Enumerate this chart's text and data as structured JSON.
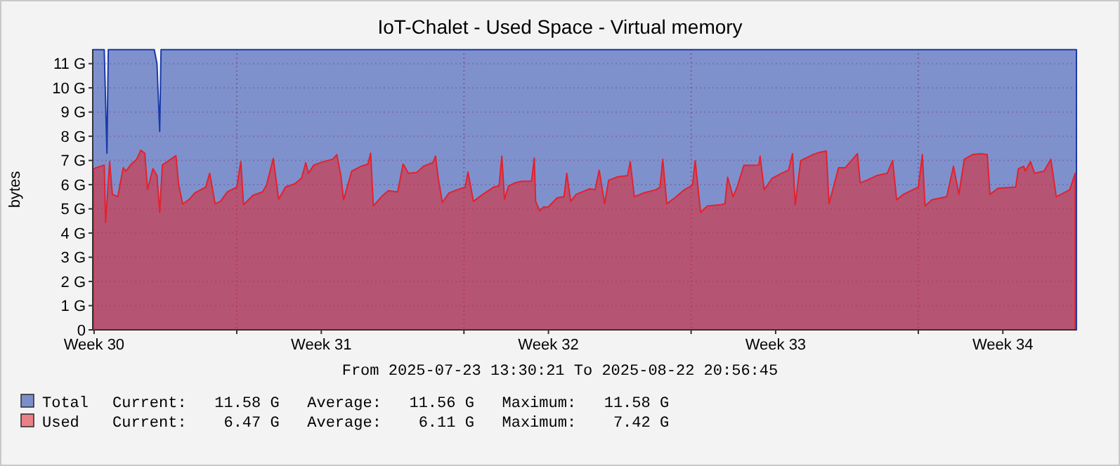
{
  "chart_data": {
    "type": "area",
    "title": "IoT-Chalet - Used Space - Virtual memory",
    "ylabel": "bytes",
    "xlim": [
      "2025-07-23T13:30",
      "2025-08-22T20:56"
    ],
    "xticks": [
      {
        "value": "2025-07-23T14:30",
        "label": "Week 30"
      },
      {
        "value": "2025-07-30T14:30",
        "label": "Week 31"
      },
      {
        "value": "2025-08-06T14:30",
        "label": "Week 32"
      },
      {
        "value": "2025-08-13T14:30",
        "label": "Week 33"
      },
      {
        "value": "2025-08-20T14:30",
        "label": "Week 34"
      },
      {
        "value": "2025-07-28T00:00",
        "label": null
      },
      {
        "value": "2025-08-04T00:00",
        "label": null
      },
      {
        "value": "2025-08-11T00:00",
        "label": null
      },
      {
        "value": "2025-08-18T00:00",
        "label": null
      }
    ],
    "ylim": [
      0,
      11.6
    ],
    "yticks": [
      0,
      {
        "value": 1,
        "label": "1 G"
      },
      {
        "value": 2,
        "label": "2 G"
      },
      {
        "value": 3,
        "label": "3 G"
      },
      {
        "value": 4,
        "label": "4 G"
      },
      {
        "value": 5,
        "label": "5 G"
      },
      {
        "value": 6,
        "label": "6 G"
      },
      {
        "value": 7,
        "label": "7 G"
      },
      {
        "value": 8,
        "label": "8 G"
      },
      {
        "value": 9,
        "label": "9 G"
      },
      {
        "value": 10,
        "label": "10 G"
      },
      {
        "value": 11,
        "label": "11 G"
      }
    ],
    "grid": true,
    "legend": "bottom",
    "series": [
      {
        "name": "Total",
        "color": "#1a3aa8",
        "x": [
          "2025-07-23T13:30",
          "2025-07-23T22:00",
          "2025-07-24T00:00",
          "2025-07-24T01:00",
          "2025-07-25T11:00",
          "2025-07-25T13:00",
          "2025-07-25T15:00",
          "2025-07-25T16:00",
          "2025-08-22T20:56"
        ],
        "values": [
          11.58,
          11.58,
          7.3,
          11.58,
          11.58,
          11.0,
          8.2,
          11.58,
          11.58
        ]
      },
      {
        "name": "Used",
        "color": "#e3222c",
        "x": [
          "2025-07-23T14:00",
          "2025-07-23T22:00",
          "2025-07-23T23:00",
          "2025-07-24T02:00",
          "2025-07-24T04:00",
          "2025-07-24T08:00",
          "2025-07-24T12:00",
          "2025-07-24T14:00",
          "2025-07-24T18:00",
          "2025-07-24T22:00",
          "2025-07-25T01:00",
          "2025-07-25T04:00",
          "2025-07-25T06:00",
          "2025-07-25T10:00",
          "2025-07-25T13:00",
          "2025-07-25T15:00",
          "2025-07-25T17:00",
          "2025-07-26T03:00",
          "2025-07-26T05:00",
          "2025-07-26T08:00",
          "2025-07-26T13:00",
          "2025-07-26T17:00",
          "2025-07-27T01:00",
          "2025-07-27T04:00",
          "2025-07-27T08:00",
          "2025-07-27T12:00",
          "2025-07-27T17:00",
          "2025-07-28T00:00",
          "2025-07-28T03:00",
          "2025-07-28T05:00",
          "2025-07-28T12:00",
          "2025-07-28T19:00",
          "2025-07-28T22:00",
          "2025-07-29T03:00",
          "2025-07-29T07:00",
          "2025-07-29T12:00",
          "2025-07-29T19:00",
          "2025-07-30T00:00",
          "2025-07-30T03:00",
          "2025-07-30T05:00",
          "2025-07-30T09:00",
          "2025-07-30T16:00",
          "2025-07-30T23:00",
          "2025-07-31T02:00",
          "2025-07-31T05:00",
          "2025-07-31T07:00",
          "2025-07-31T13:00",
          "2025-07-31T20:00",
          "2025-08-01T01:00",
          "2025-08-01T03:00",
          "2025-08-01T05:00",
          "2025-08-01T11:00",
          "2025-08-01T16:00",
          "2025-08-01T23:00",
          "2025-08-02T03:00",
          "2025-08-02T07:00",
          "2025-08-02T13:00",
          "2025-08-02T18:00",
          "2025-08-03T01:00",
          "2025-08-03T03:00",
          "2025-08-03T05:00",
          "2025-08-03T08:00",
          "2025-08-03T13:00",
          "2025-08-03T19:00",
          "2025-08-04T01:00",
          "2025-08-04T03:00",
          "2025-08-04T07:00",
          "2025-08-04T14:00",
          "2025-08-04T22:00",
          "2025-08-05T02:00",
          "2025-08-05T04:00",
          "2025-08-05T06:00",
          "2025-08-05T09:00",
          "2025-08-05T14:00",
          "2025-08-05T19:00",
          "2025-08-06T02:00",
          "2025-08-06T04:00",
          "2025-08-06T05:00",
          "2025-08-06T08:00",
          "2025-08-06T11:00",
          "2025-08-06T14:00",
          "2025-08-06T21:00",
          "2025-08-07T02:00",
          "2025-08-07T04:00",
          "2025-08-07T07:00",
          "2025-08-07T11:00",
          "2025-08-07T21:00",
          "2025-08-08T01:00",
          "2025-08-08T04:00",
          "2025-08-08T08:00",
          "2025-08-08T11:00",
          "2025-08-08T18:00",
          "2025-08-09T01:00",
          "2025-08-09T03:00",
          "2025-08-09T06:00",
          "2025-08-09T13:00",
          "2025-08-09T22:00",
          "2025-08-10T01:00",
          "2025-08-10T03:00",
          "2025-08-10T06:00",
          "2025-08-10T12:00",
          "2025-08-10T19:00",
          "2025-08-11T01:00",
          "2025-08-11T03:00",
          "2025-08-11T07:00",
          "2025-08-11T12:00",
          "2025-08-11T22:00",
          "2025-08-12T01:00",
          "2025-08-12T03:00",
          "2025-08-12T07:00",
          "2025-08-12T10:00",
          "2025-08-12T15:00",
          "2025-08-13T02:00",
          "2025-08-13T03:00",
          "2025-08-13T06:00",
          "2025-08-13T12:00",
          "2025-08-13T19:00",
          "2025-08-14T00:00",
          "2025-08-14T03:00",
          "2025-08-14T05:00",
          "2025-08-14T09:00",
          "2025-08-14T18:00",
          "2025-08-14T23:00",
          "2025-08-15T04:00",
          "2025-08-15T06:00",
          "2025-08-15T13:00",
          "2025-08-15T18:00",
          "2025-08-16T03:00",
          "2025-08-16T05:00",
          "2025-08-16T10:00",
          "2025-08-16T17:00",
          "2025-08-17T01:00",
          "2025-08-17T05:00",
          "2025-08-17T08:00",
          "2025-08-17T13:00",
          "2025-08-18T00:00",
          "2025-08-18T03:00",
          "2025-08-18T05:00",
          "2025-08-18T10:00",
          "2025-08-18T21:00",
          "2025-08-19T02:00",
          "2025-08-19T06:00",
          "2025-08-19T10:00",
          "2025-08-19T16:00",
          "2025-08-19T22:00",
          "2025-08-20T03:00",
          "2025-08-20T05:00",
          "2025-08-20T11:00",
          "2025-08-21T00:00",
          "2025-08-21T02:00",
          "2025-08-21T06:00",
          "2025-08-21T07:00",
          "2025-08-21T11:00",
          "2025-08-21T14:00",
          "2025-08-21T21:00",
          "2025-08-22T02:00",
          "2025-08-22T06:00",
          "2025-08-22T16:00",
          "2025-08-22T20:00"
        ],
        "values": [
          6.66,
          6.81,
          4.44,
          6.95,
          5.6,
          5.5,
          6.7,
          6.56,
          6.85,
          7.05,
          7.42,
          7.3,
          5.8,
          6.66,
          6.37,
          4.86,
          6.81,
          7.2,
          6.02,
          5.2,
          5.4,
          5.66,
          5.9,
          6.47,
          5.21,
          5.31,
          5.7,
          5.9,
          6.95,
          5.17,
          5.56,
          5.7,
          5.98,
          7.08,
          5.4,
          5.9,
          6.04,
          6.27,
          6.91,
          6.47,
          6.81,
          6.95,
          7.05,
          7.24,
          6.37,
          5.37,
          6.56,
          6.76,
          6.85,
          7.3,
          5.12,
          5.5,
          5.75,
          5.7,
          6.85,
          6.47,
          6.5,
          6.76,
          6.91,
          7.18,
          6.27,
          5.27,
          5.66,
          5.79,
          5.9,
          6.52,
          5.31,
          5.6,
          5.9,
          5.95,
          7.18,
          5.4,
          5.95,
          6.08,
          6.14,
          6.14,
          7.1,
          5.31,
          4.92,
          5.08,
          5.06,
          5.46,
          5.5,
          6.47,
          5.31,
          5.6,
          5.83,
          5.79,
          6.6,
          5.21,
          6.18,
          6.33,
          6.37,
          6.95,
          5.5,
          5.66,
          5.79,
          5.9,
          7.05,
          5.21,
          5.46,
          5.79,
          5.98,
          6.99,
          4.86,
          5.12,
          5.17,
          5.21,
          6.31,
          5.5,
          5.9,
          6.8,
          6.81,
          7.18,
          5.79,
          6.27,
          6.47,
          6.6,
          7.28,
          5.17,
          6.99,
          7.24,
          7.34,
          7.39,
          5.21,
          6.7,
          6.7,
          7.28,
          6.08,
          6.18,
          6.37,
          6.47,
          6.99,
          5.37,
          5.6,
          5.9,
          7.24,
          5.12,
          5.37,
          5.5,
          6.76,
          5.6,
          7.05,
          7.24,
          7.28,
          7.24,
          5.6,
          5.85,
          5.9,
          6.66,
          6.76,
          6.56,
          6.95,
          6.47,
          6.56,
          7.05,
          5.5,
          5.79,
          6.47
        ]
      }
    ],
    "annotations": [
      "From 2025-07-23 13:30:21 To 2025-08-22 20:56:45",
      "Current:   11.58 G   Average:   11.56 G   Maximum:   11.58 G",
      "Current:    6.47 G   Average:    6.11 G   Maximum:    7.42 G"
    ]
  }
}
